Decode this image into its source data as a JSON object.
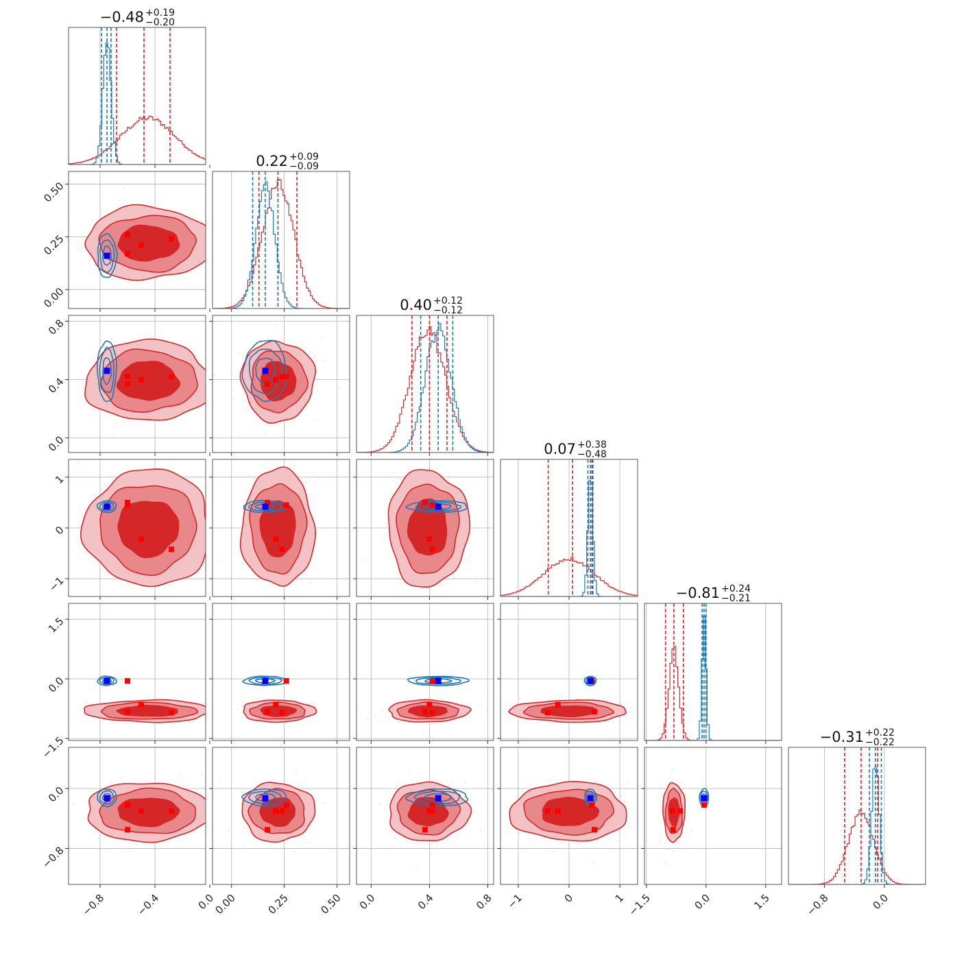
{
  "chart_data": {
    "type": "corner",
    "parameters": 6,
    "colors": {
      "blue": "#1f77b4",
      "red": "#d62728",
      "blue_marker": "#0000ff",
      "red_marker": "#ff0000",
      "grid": "#b0b0b0"
    },
    "titles": [
      {
        "value": "−0.48",
        "plus": "+0.19",
        "minus": "−0.20"
      },
      {
        "value": "0.22",
        "plus": "+0.09",
        "minus": "−0.09"
      },
      {
        "value": "0.40",
        "plus": "+0.12",
        "minus": "−0.12"
      },
      {
        "value": "0.07",
        "plus": "+0.38",
        "minus": "−0.48"
      },
      {
        "value": "−0.81",
        "plus": "+0.24",
        "minus": "−0.21"
      },
      {
        "value": "−0.31",
        "plus": "+0.22",
        "minus": "−0.22"
      }
    ],
    "axes": [
      {
        "range": [
          -1.03,
          -0.03
        ],
        "ticks": [
          -0.8,
          -0.4,
          0.0
        ],
        "tick_labels": [
          "−0.8",
          "−0.4",
          "0.0"
        ]
      },
      {
        "range": [
          -0.09,
          0.56
        ],
        "ticks": [
          0.0,
          0.25,
          0.5
        ],
        "tick_labels": [
          "0.00",
          "0.25",
          "0.50"
        ]
      },
      {
        "range": [
          -0.1,
          0.84
        ],
        "ticks": [
          0.0,
          0.4,
          0.8
        ],
        "tick_labels": [
          "0.0",
          "0.4",
          "0.8"
        ]
      },
      {
        "range": [
          -1.35,
          1.35
        ],
        "ticks": [
          -1,
          0,
          1
        ],
        "tick_labels": [
          "−1",
          "0",
          "1"
        ]
      },
      {
        "range": [
          -1.55,
          1.9
        ],
        "ticks": [
          -1.5,
          0.0,
          1.5
        ],
        "tick_labels": [
          "−1.5",
          "0.0",
          "1.5"
        ]
      },
      {
        "range": [
          -1.28,
          0.55
        ],
        "ticks": [
          -0.8,
          0.0
        ],
        "tick_labels": [
          "−0.8",
          "0.0"
        ]
      }
    ],
    "marginals": [
      {
        "blue": {
          "mean": -0.75,
          "sd": 0.03,
          "quantiles": [
            -0.79,
            -0.75,
            -0.72
          ]
        },
        "red": {
          "mean": -0.45,
          "sd": 0.2,
          "quantiles": [
            -0.68,
            -0.48,
            -0.29
          ]
        }
      },
      {
        "blue": {
          "mean": 0.16,
          "sd": 0.045,
          "quantiles": [
            0.1,
            0.16,
            0.22
          ]
        },
        "red": {
          "mean": 0.22,
          "sd": 0.075,
          "quantiles": [
            0.13,
            0.22,
            0.31
          ]
        }
      },
      {
        "blue": {
          "mean": 0.46,
          "sd": 0.09,
          "quantiles": [
            0.34,
            0.46,
            0.56
          ]
        },
        "red": {
          "mean": 0.39,
          "sd": 0.12,
          "quantiles": [
            0.28,
            0.4,
            0.52
          ]
        }
      },
      {
        "blue": {
          "mean": 0.42,
          "sd": 0.05,
          "quantiles": [
            0.37,
            0.42,
            0.47
          ]
        },
        "red": {
          "mean": 0.0,
          "sd": 0.5,
          "quantiles": [
            -0.41,
            0.07,
            0.45
          ]
        }
      },
      {
        "blue": {
          "mean": -0.05,
          "sd": 0.05,
          "quantiles": [
            -0.1,
            -0.05,
            0.0
          ]
        },
        "red": {
          "mean": -0.81,
          "sd": 0.12,
          "quantiles": [
            -1.02,
            -0.81,
            -0.57
          ]
        }
      },
      {
        "blue": {
          "mean": -0.12,
          "sd": 0.05,
          "quantiles": [
            -0.2,
            -0.12,
            -0.04
          ]
        },
        "red": {
          "mean": -0.31,
          "sd": 0.17,
          "quantiles": [
            -0.53,
            -0.31,
            -0.09
          ]
        }
      }
    ],
    "truth_blue": [
      -0.75,
      0.16,
      0.46,
      0.42,
      -0.05,
      -0.13
    ],
    "truth_red_sets": [
      [
        -0.6,
        0.26,
        0.42,
        0.45,
        -0.05,
        -0.22
      ],
      [
        -0.5,
        0.21,
        0.4,
        -0.22,
        -0.65,
        -0.3
      ],
      [
        -0.6,
        0.17,
        0.37,
        0.5,
        -0.83,
        -0.55
      ],
      [
        -0.28,
        0.24,
        0.42,
        -0.42,
        -0.85,
        -0.3
      ]
    ]
  }
}
